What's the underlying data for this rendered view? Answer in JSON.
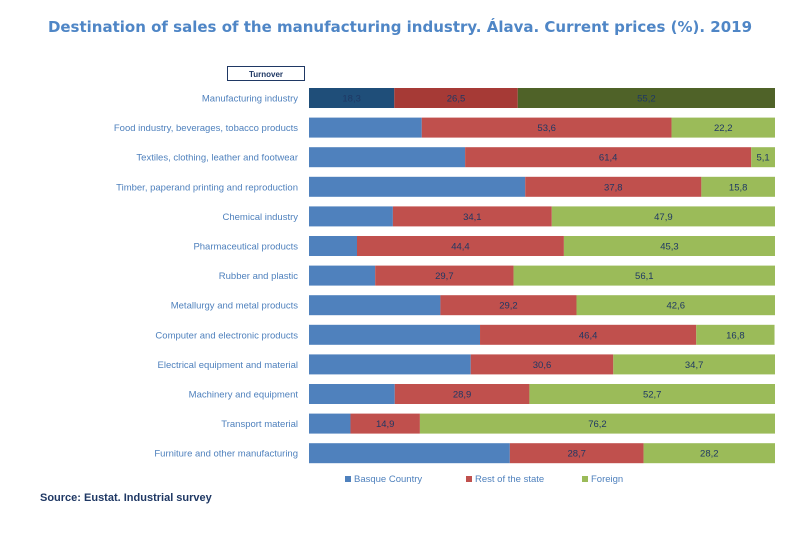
{
  "title": "Destination of sales of the manufacturing industry. Álava. Current prices (%). 2019",
  "badge": "Turnover",
  "source": "Source: Eustat. Industrial survey",
  "colors": {
    "basque": "#4f81bd",
    "rest": "#c0504d",
    "foreign": "#9bbb59",
    "basque_highlight": "#1f4e79",
    "rest_highlight": "#a63a36",
    "foreign_highlight": "#4f6228",
    "label": "#4f81bd",
    "value_text": "#1f3864"
  },
  "chart_data": {
    "type": "bar",
    "orientation": "horizontal",
    "stacked": true,
    "title": "Destination of sales of the manufacturing industry. Álava. Current prices (%). 2019",
    "xlim": [
      0,
      100
    ],
    "legend_position": "bottom",
    "categories": [
      "Manufacturing industry",
      "Food industry, beverages, tobacco products",
      "Textiles, clothing, leather and footwear",
      "Timber, paperand printing and reproduction",
      "Chemical industry",
      "Pharmaceutical products",
      "Rubber and plastic",
      "Metallurgy and metal products",
      "Computer and electronic products",
      "Electrical equipment and material",
      "Machinery and equipment",
      "Transport material",
      "Furniture and other manufacturing"
    ],
    "series": [
      {
        "name": "Basque Country",
        "values": [
          18.3,
          24.2,
          33.5,
          46.4,
          18.0,
          10.3,
          14.2,
          28.2,
          36.7,
          34.7,
          18.4,
          8.9,
          43.1
        ]
      },
      {
        "name": "Rest of the state",
        "values": [
          26.5,
          53.6,
          61.4,
          37.8,
          34.1,
          44.4,
          29.7,
          29.2,
          46.4,
          30.6,
          28.9,
          14.9,
          28.7
        ]
      },
      {
        "name": "Foreign",
        "values": [
          55.2,
          22.2,
          5.1,
          15.8,
          47.9,
          45.3,
          56.1,
          42.6,
          16.8,
          34.7,
          52.7,
          76.2,
          28.2
        ]
      }
    ],
    "value_labels": [
      [
        "18,3",
        "26,5",
        "55,2"
      ],
      [
        "",
        "53,6",
        "22,2"
      ],
      [
        "",
        "61,4",
        "5,1"
      ],
      [
        "",
        "37,8",
        "15,8"
      ],
      [
        "",
        "34,1",
        "47,9"
      ],
      [
        "",
        "44,4",
        "45,3"
      ],
      [
        "",
        "29,7",
        "56,1"
      ],
      [
        "",
        "29,2",
        "42,6"
      ],
      [
        "",
        "46,4",
        "16,8"
      ],
      [
        "",
        "30,6",
        "34,7"
      ],
      [
        "",
        "28,9",
        "52,7"
      ],
      [
        "",
        "14,9",
        "76,2"
      ],
      [
        "",
        "28,7",
        "28,2"
      ]
    ],
    "highlight_index": 0
  }
}
